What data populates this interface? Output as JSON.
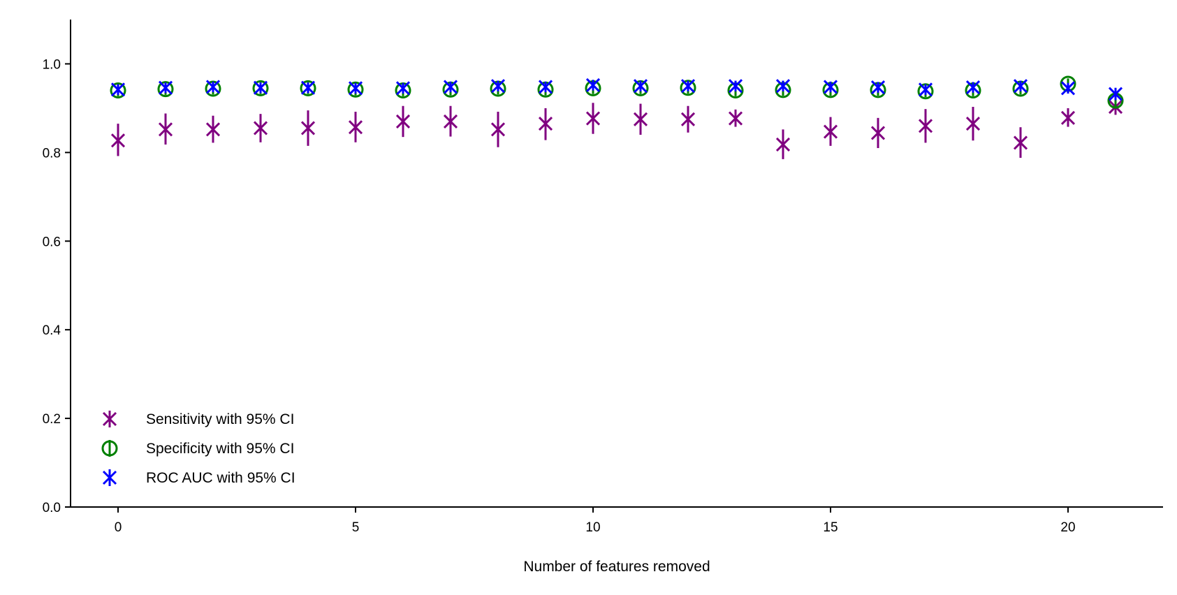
{
  "chart_data": {
    "type": "scatter",
    "title": "",
    "xlabel": "Number of features removed",
    "ylabel": "",
    "xlim": [
      -1,
      22
    ],
    "ylim": [
      0,
      1.1
    ],
    "xticks": [
      0,
      5,
      10,
      15,
      20
    ],
    "yticks": [
      "0.0",
      "0.2",
      "0.4",
      "0.6",
      "0.8",
      "1.0"
    ],
    "grid": false,
    "legend_position": "lower-left",
    "x": [
      0,
      1,
      2,
      3,
      4,
      5,
      6,
      7,
      8,
      9,
      10,
      11,
      12,
      13,
      14,
      15,
      16,
      17,
      18,
      19,
      20,
      21
    ],
    "series": [
      {
        "name": "Sensitivity with 95% CI",
        "color": "#800080",
        "marker": "x",
        "values": [
          0.827,
          0.852,
          0.852,
          0.855,
          0.855,
          0.857,
          0.87,
          0.87,
          0.852,
          0.865,
          0.877,
          0.875,
          0.875,
          0.877,
          0.818,
          0.847,
          0.844,
          0.86,
          0.865,
          0.822,
          0.878,
          0.903
        ],
        "ci_low": [
          0.792,
          0.818,
          0.822,
          0.823,
          0.815,
          0.823,
          0.835,
          0.836,
          0.812,
          0.828,
          0.842,
          0.84,
          0.845,
          0.858,
          0.785,
          0.815,
          0.81,
          0.822,
          0.827,
          0.788,
          0.858,
          0.885
        ],
        "ci_high": [
          0.865,
          0.888,
          0.883,
          0.887,
          0.895,
          0.892,
          0.905,
          0.905,
          0.892,
          0.9,
          0.912,
          0.91,
          0.905,
          0.897,
          0.852,
          0.88,
          0.878,
          0.898,
          0.903,
          0.857,
          0.9,
          0.921
        ]
      },
      {
        "name": "Specificity with 95% CI",
        "color": "#008000",
        "marker": "o",
        "values": [
          0.94,
          0.943,
          0.944,
          0.945,
          0.945,
          0.942,
          0.94,
          0.942,
          0.944,
          0.942,
          0.945,
          0.945,
          0.946,
          0.94,
          0.941,
          0.941,
          0.941,
          0.938,
          0.94,
          0.944,
          0.955,
          0.917
        ],
        "ci_low": [
          0.927,
          0.93,
          0.931,
          0.932,
          0.932,
          0.929,
          0.927,
          0.929,
          0.931,
          0.929,
          0.932,
          0.932,
          0.933,
          0.927,
          0.928,
          0.928,
          0.928,
          0.925,
          0.927,
          0.931,
          0.943,
          0.903
        ],
        "ci_high": [
          0.953,
          0.956,
          0.957,
          0.958,
          0.958,
          0.955,
          0.953,
          0.955,
          0.957,
          0.955,
          0.958,
          0.958,
          0.959,
          0.953,
          0.954,
          0.954,
          0.954,
          0.951,
          0.953,
          0.957,
          0.967,
          0.931
        ]
      },
      {
        "name": "ROC AUC with 95% CI",
        "color": "#0000ff",
        "marker": "x",
        "values": [
          0.942,
          0.946,
          0.948,
          0.946,
          0.946,
          0.945,
          0.945,
          0.948,
          0.95,
          0.948,
          0.952,
          0.95,
          0.95,
          0.95,
          0.95,
          0.948,
          0.947,
          0.942,
          0.947,
          0.95,
          0.945,
          0.932
        ],
        "ci_low": [
          0.93,
          0.934,
          0.936,
          0.934,
          0.934,
          0.933,
          0.933,
          0.936,
          0.938,
          0.936,
          0.94,
          0.938,
          0.938,
          0.938,
          0.938,
          0.936,
          0.935,
          0.93,
          0.935,
          0.938,
          0.933,
          0.918
        ],
        "ci_high": [
          0.954,
          0.958,
          0.96,
          0.958,
          0.958,
          0.957,
          0.957,
          0.96,
          0.962,
          0.96,
          0.964,
          0.962,
          0.962,
          0.962,
          0.962,
          0.96,
          0.959,
          0.954,
          0.959,
          0.962,
          0.957,
          0.946
        ]
      }
    ]
  }
}
